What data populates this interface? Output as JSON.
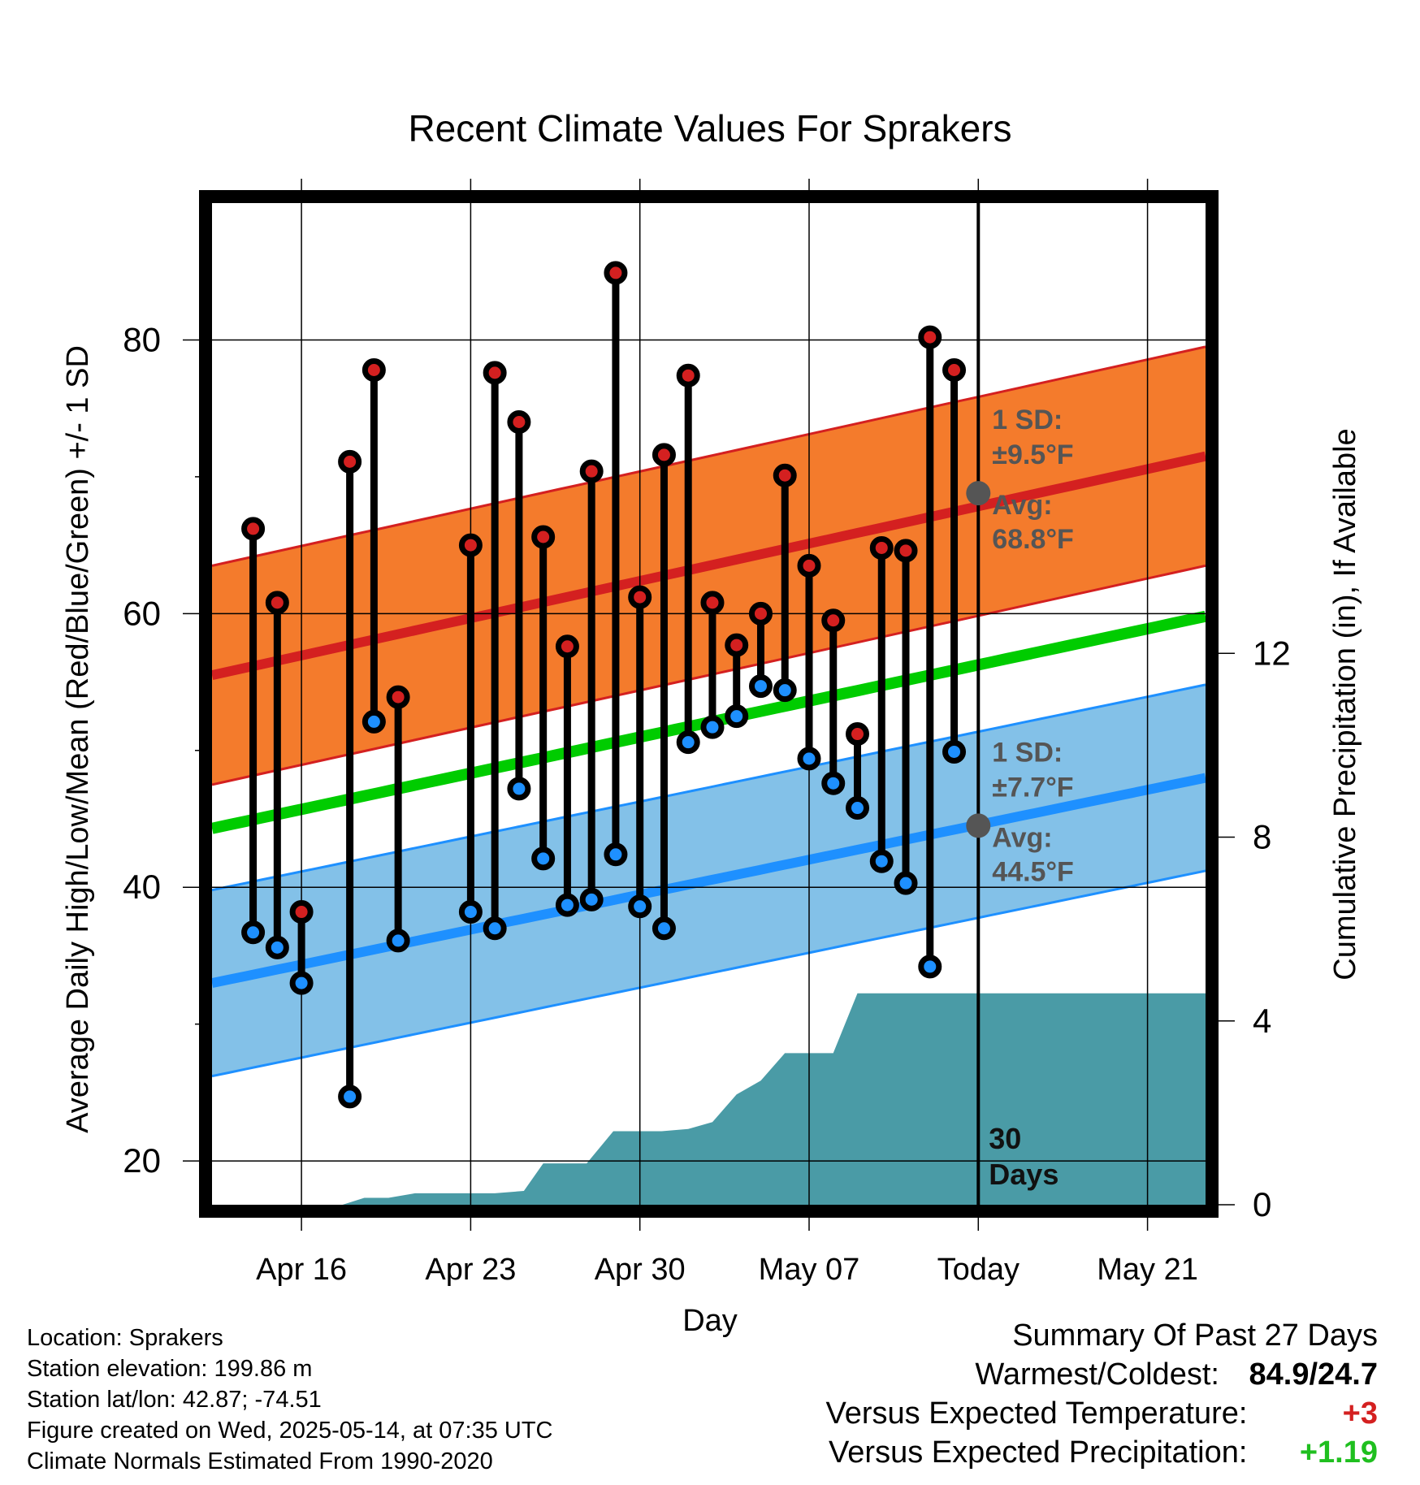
{
  "chart_data": {
    "type": "line",
    "title": "Recent Climate Values For Sprakers",
    "xlabel": "Day",
    "ylabel": "Average Daily High/Low/Mean (Red/Blue/Green) +/- 1 SD",
    "y2label": "Cumulative Precipitation (in), If Available",
    "x_tick_labels": [
      "Apr 16",
      "Apr 23",
      "Apr 30",
      "May 07",
      "Today",
      "May 21"
    ],
    "x_tick_days": [
      16,
      23,
      30,
      37,
      44,
      51
    ],
    "xlim_days": [
      12.3,
      53.4
    ],
    "ylim": [
      16.8,
      90
    ],
    "y_ticks": [
      20,
      40,
      60,
      80
    ],
    "y_minor_ticks": [
      30,
      50,
      70
    ],
    "y2lim": [
      0,
      21.8
    ],
    "y2_ticks": [
      0,
      4,
      8,
      12
    ],
    "grid": true,
    "today_day": 44,
    "today_marker_label": "30\nDays",
    "normals": {
      "high_avg": [
        55.5,
        71.5
      ],
      "high_sd": 8.0,
      "low_avg": [
        33.0,
        48.0
      ],
      "low_sd": 6.8,
      "mean_avg": [
        44.3,
        59.8
      ],
      "high_annotation": {
        "sd_label": "1 SD:",
        "sd_value": "±9.5°F",
        "avg_label": "Avg:",
        "avg_value": "68.8°F",
        "avg": 68.8
      },
      "low_annotation": {
        "sd_label": "1 SD:",
        "sd_value": "±7.7°F",
        "avg_label": "Avg:",
        "avg_value": "44.5°F",
        "avg": 44.5
      }
    },
    "daily": [
      {
        "day": 14,
        "high": 66.2,
        "low": 36.7
      },
      {
        "day": 15,
        "high": 60.8,
        "low": 35.6
      },
      {
        "day": 16,
        "high": 38.2,
        "low": 33.0
      },
      {
        "day": 18,
        "high": 71.1,
        "low": 24.7
      },
      {
        "day": 19,
        "high": 77.8,
        "low": 52.1
      },
      {
        "day": 20,
        "high": 53.9,
        "low": 36.1
      },
      {
        "day": 23,
        "high": 65.0,
        "low": 38.2
      },
      {
        "day": 24,
        "high": 77.6,
        "low": 37.0
      },
      {
        "day": 25,
        "high": 74.0,
        "low": 47.2
      },
      {
        "day": 26,
        "high": 65.6,
        "low": 42.1
      },
      {
        "day": 27,
        "high": 57.6,
        "low": 38.7
      },
      {
        "day": 28,
        "high": 70.4,
        "low": 39.1
      },
      {
        "day": 29,
        "high": 84.9,
        "low": 42.4
      },
      {
        "day": 30,
        "high": 61.2,
        "low": 38.6
      },
      {
        "day": 31,
        "high": 71.6,
        "low": 37.0
      },
      {
        "day": 32,
        "high": 77.4,
        "low": 50.6
      },
      {
        "day": 33,
        "high": 60.8,
        "low": 51.7
      },
      {
        "day": 34,
        "high": 57.7,
        "low": 52.5
      },
      {
        "day": 35,
        "high": 60.0,
        "low": 54.7
      },
      {
        "day": 36,
        "high": 70.1,
        "low": 54.4
      },
      {
        "day": 37,
        "high": 63.5,
        "low": 49.4
      },
      {
        "day": 38,
        "high": 59.5,
        "low": 47.6
      },
      {
        "day": 39,
        "high": 51.2,
        "low": 45.8
      },
      {
        "day": 40,
        "high": 64.8,
        "low": 41.9
      },
      {
        "day": 41,
        "high": 64.6,
        "low": 40.3
      },
      {
        "day": 42,
        "high": 80.2,
        "low": 34.2
      },
      {
        "day": 43,
        "high": 77.8,
        "low": 49.9
      }
    ],
    "precip_cumulative": [
      {
        "day": 12.3,
        "value": 0
      },
      {
        "day": 17.7,
        "value": 0
      },
      {
        "day": 18.6,
        "value": 0.15
      },
      {
        "day": 19.6,
        "value": 0.15
      },
      {
        "day": 20.7,
        "value": 0.25
      },
      {
        "day": 24.0,
        "value": 0.25
      },
      {
        "day": 25.2,
        "value": 0.3
      },
      {
        "day": 26.0,
        "value": 0.9
      },
      {
        "day": 27.8,
        "value": 0.9
      },
      {
        "day": 28.9,
        "value": 1.6
      },
      {
        "day": 30.9,
        "value": 1.6
      },
      {
        "day": 32.0,
        "value": 1.65
      },
      {
        "day": 33.0,
        "value": 1.8
      },
      {
        "day": 34.0,
        "value": 2.4
      },
      {
        "day": 35.0,
        "value": 2.7
      },
      {
        "day": 36.0,
        "value": 3.3
      },
      {
        "day": 38.0,
        "value": 3.3
      },
      {
        "day": 39.0,
        "value": 4.6
      },
      {
        "day": 53.4,
        "value": 4.6
      }
    ],
    "colors": {
      "high": "#d42020",
      "high_band": "#f47b2c",
      "low": "#1e90ff",
      "low_band": "#83c1e8",
      "mean": "#00cc00",
      "precip": "#4a9ba6",
      "annotation": "#555555"
    }
  },
  "footer": {
    "location": "Location: Sprakers",
    "elevation": "Station elevation: 199.86 m",
    "latlon": "Station lat/lon: 42.87; -74.51",
    "created": "Figure created on Wed, 2025-05-14, at 07:35 UTC",
    "normals": "Climate Normals Estimated From 1990-2020"
  },
  "summary": {
    "title": "Summary Of Past 27 Days",
    "warm_cold_label": "Warmest/Coldest:",
    "warm_cold_value": "84.9/24.7",
    "temp_label": "Versus Expected Temperature:",
    "temp_value": "+3",
    "temp_color": "#d42020",
    "precip_label": "Versus Expected Precipitation:",
    "precip_value": "+1.19",
    "precip_color": "#1fbf1f"
  }
}
